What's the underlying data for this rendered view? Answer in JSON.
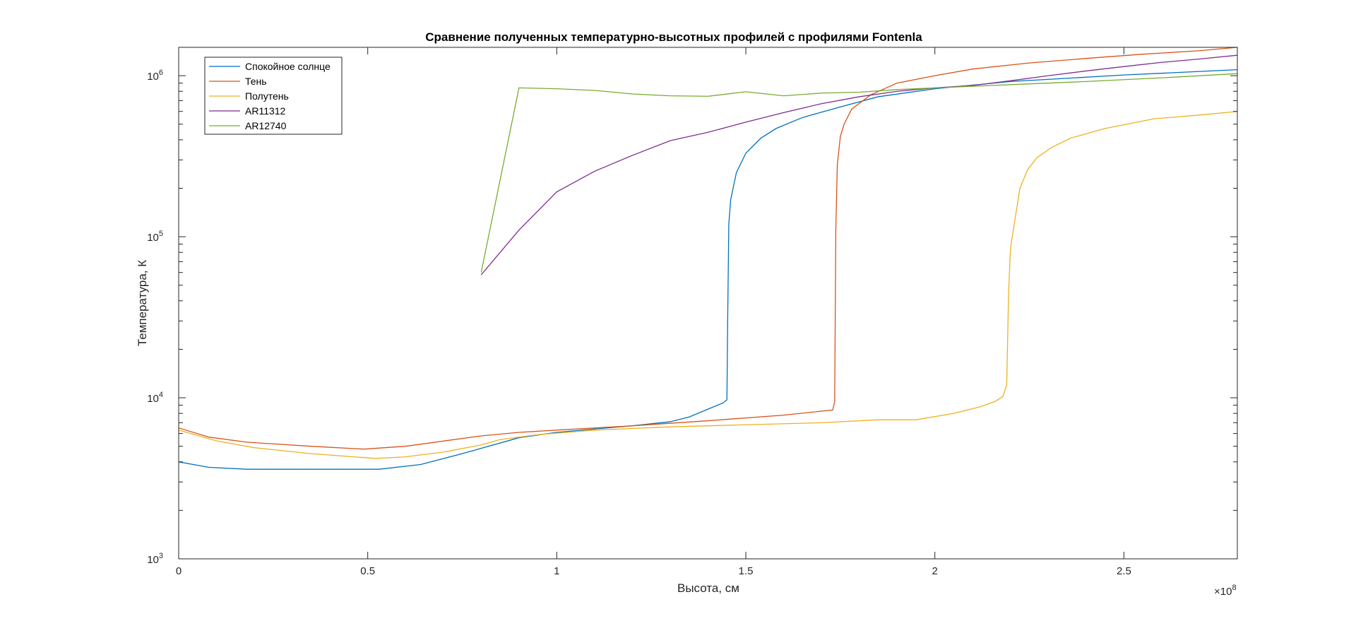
{
  "chart_data": {
    "type": "line",
    "title": "Сравнение полученных температурно-высотных профилей с профилями Fontenla",
    "xlabel": "Высота, см",
    "ylabel": "Температура, К",
    "x_exponent_label": "×10",
    "x_exponent_power": "8",
    "x_scale_factor": 100000000,
    "xlim": [
      0,
      2.8
    ],
    "ylim": [
      1000,
      1500000
    ],
    "yscale": "log",
    "grid": false,
    "legend_position": "top-left",
    "x_ticks": [
      {
        "value": 0,
        "label": "0"
      },
      {
        "value": 0.5,
        "label": "0.5"
      },
      {
        "value": 1,
        "label": "1"
      },
      {
        "value": 1.5,
        "label": "1.5"
      },
      {
        "value": 2,
        "label": "2"
      },
      {
        "value": 2.5,
        "label": "2.5"
      }
    ],
    "y_ticks": [
      {
        "value": 1000,
        "base": "10",
        "exp": "3"
      },
      {
        "value": 10000,
        "base": "10",
        "exp": "4"
      },
      {
        "value": 100000,
        "base": "10",
        "exp": "5"
      },
      {
        "value": 1000000,
        "base": "10",
        "exp": "6"
      }
    ],
    "series": [
      {
        "name": "Спокойное солнце",
        "color": "#0072BD",
        "points": [
          [
            0,
            4000
          ],
          [
            0.08,
            3700
          ],
          [
            0.18,
            3600
          ],
          [
            0.3,
            3600
          ],
          [
            0.42,
            3600
          ],
          [
            0.53,
            3600
          ],
          [
            0.64,
            3850
          ],
          [
            0.75,
            4500
          ],
          [
            0.9,
            5650
          ],
          [
            1.0,
            6100
          ],
          [
            1.1,
            6400
          ],
          [
            1.2,
            6700
          ],
          [
            1.3,
            7100
          ],
          [
            1.35,
            7600
          ],
          [
            1.4,
            8500
          ],
          [
            1.44,
            9300
          ],
          [
            1.45,
            9700
          ],
          [
            1.452,
            30000
          ],
          [
            1.455,
            120000
          ],
          [
            1.46,
            170000
          ],
          [
            1.475,
            250000
          ],
          [
            1.5,
            330000
          ],
          [
            1.54,
            410000
          ],
          [
            1.58,
            470000
          ],
          [
            1.65,
            550000
          ],
          [
            1.75,
            640000
          ],
          [
            1.85,
            740000
          ],
          [
            2.0,
            830000
          ],
          [
            2.2,
            920000
          ],
          [
            2.5,
            1010000
          ],
          [
            2.8,
            1090000
          ]
        ]
      },
      {
        "name": "Тень",
        "color": "#D95319",
        "points": [
          [
            0,
            6500
          ],
          [
            0.08,
            5700
          ],
          [
            0.18,
            5300
          ],
          [
            0.35,
            5000
          ],
          [
            0.49,
            4800
          ],
          [
            0.6,
            5000
          ],
          [
            0.8,
            5800
          ],
          [
            0.9,
            6100
          ],
          [
            1.0,
            6300
          ],
          [
            1.2,
            6700
          ],
          [
            1.4,
            7200
          ],
          [
            1.6,
            7800
          ],
          [
            1.73,
            8400
          ],
          [
            1.735,
            9500
          ],
          [
            1.738,
            110000
          ],
          [
            1.742,
            280000
          ],
          [
            1.75,
            420000
          ],
          [
            1.76,
            500000
          ],
          [
            1.78,
            620000
          ],
          [
            1.83,
            760000
          ],
          [
            1.9,
            900000
          ],
          [
            2.0,
            1000000
          ],
          [
            2.1,
            1100000
          ],
          [
            2.25,
            1200000
          ],
          [
            2.4,
            1280000
          ],
          [
            2.55,
            1360000
          ],
          [
            2.7,
            1430000
          ],
          [
            2.8,
            1500000
          ]
        ]
      },
      {
        "name": "Полутень",
        "color": "#EDB120",
        "points": [
          [
            0,
            6300
          ],
          [
            0.1,
            5400
          ],
          [
            0.2,
            4900
          ],
          [
            0.35,
            4500
          ],
          [
            0.52,
            4200
          ],
          [
            0.6,
            4300
          ],
          [
            0.7,
            4600
          ],
          [
            0.8,
            5100
          ],
          [
            0.85,
            5500
          ],
          [
            0.95,
            5900
          ],
          [
            1.1,
            6300
          ],
          [
            1.3,
            6600
          ],
          [
            1.5,
            6800
          ],
          [
            1.7,
            7000
          ],
          [
            1.85,
            7300
          ],
          [
            1.95,
            7300
          ],
          [
            2.05,
            8000
          ],
          [
            2.12,
            8800
          ],
          [
            2.16,
            9500
          ],
          [
            2.18,
            10200
          ],
          [
            2.19,
            12000
          ],
          [
            2.195,
            45000
          ],
          [
            2.2,
            85000
          ],
          [
            2.21,
            120000
          ],
          [
            2.225,
            200000
          ],
          [
            2.245,
            260000
          ],
          [
            2.27,
            310000
          ],
          [
            2.31,
            360000
          ],
          [
            2.36,
            410000
          ],
          [
            2.45,
            470000
          ],
          [
            2.58,
            540000
          ],
          [
            2.7,
            570000
          ],
          [
            2.8,
            600000
          ]
        ]
      },
      {
        "name": "AR11312",
        "color": "#7E2F8E",
        "points": [
          [
            0.8,
            58000
          ],
          [
            0.9,
            110000
          ],
          [
            1.0,
            190000
          ],
          [
            1.1,
            255000
          ],
          [
            1.2,
            320000
          ],
          [
            1.3,
            395000
          ],
          [
            1.4,
            445000
          ],
          [
            1.5,
            515000
          ],
          [
            1.6,
            590000
          ],
          [
            1.7,
            670000
          ],
          [
            1.8,
            740000
          ],
          [
            1.9,
            800000
          ],
          [
            2.0,
            840000
          ],
          [
            2.1,
            870000
          ],
          [
            2.2,
            930000
          ],
          [
            2.3,
            1000000
          ],
          [
            2.4,
            1070000
          ],
          [
            2.5,
            1140000
          ],
          [
            2.6,
            1210000
          ],
          [
            2.7,
            1270000
          ],
          [
            2.8,
            1340000
          ]
        ]
      },
      {
        "name": "AR12740",
        "color": "#77AC30",
        "points": [
          [
            0.8,
            60000
          ],
          [
            0.9,
            840000
          ],
          [
            1.0,
            830000
          ],
          [
            1.1,
            810000
          ],
          [
            1.2,
            770000
          ],
          [
            1.3,
            750000
          ],
          [
            1.4,
            745000
          ],
          [
            1.5,
            795000
          ],
          [
            1.6,
            750000
          ],
          [
            1.7,
            780000
          ],
          [
            1.8,
            790000
          ],
          [
            1.9,
            820000
          ],
          [
            2.0,
            840000
          ],
          [
            2.2,
            880000
          ],
          [
            2.4,
            920000
          ],
          [
            2.6,
            970000
          ],
          [
            2.8,
            1030000
          ]
        ]
      }
    ]
  }
}
